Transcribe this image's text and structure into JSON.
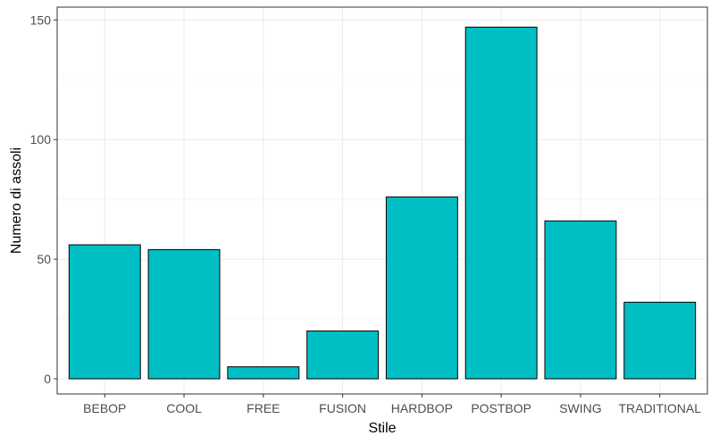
{
  "chart_data": {
    "type": "bar",
    "xlabel": "Stile",
    "ylabel": "Numero di assoli",
    "categories": [
      "BEBOP",
      "COOL",
      "FREE",
      "FUSION",
      "HARDBOP",
      "POSTBOP",
      "SWING",
      "TRADITIONAL"
    ],
    "values": [
      56,
      54,
      5,
      20,
      76,
      147,
      66,
      32
    ],
    "ylim": [
      -6.35,
      155.35
    ],
    "yticks": [
      0,
      50,
      100,
      150
    ],
    "grid": true,
    "legend": "none",
    "colors": {
      "bar_fill": "#00BFC4",
      "bar_stroke": "#000000",
      "grid_major": "#EBEBEB",
      "grid_minor": "#F4F4F4",
      "panel_border": "#333333"
    }
  }
}
